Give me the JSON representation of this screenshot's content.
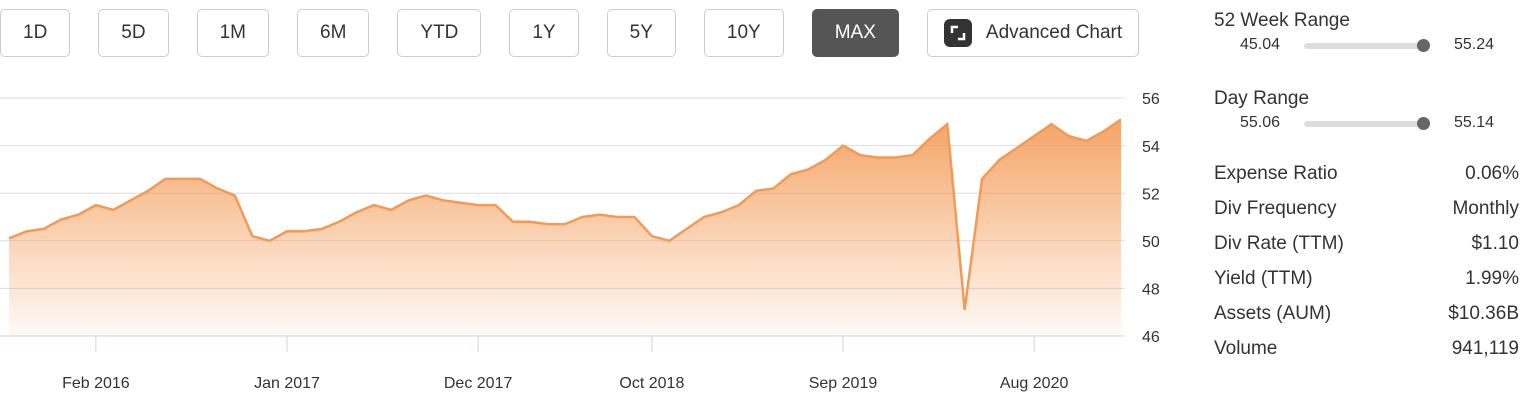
{
  "ranges": [
    "1D",
    "5D",
    "1M",
    "6M",
    "YTD",
    "1Y",
    "5Y",
    "10Y",
    "MAX"
  ],
  "advanced_chart": "Advanced Chart",
  "chart_data": {
    "type": "area",
    "x": [
      "Sep 2015",
      "Oct 2015",
      "Nov 2015",
      "Dec 2015",
      "Jan 2016",
      "Feb 2016",
      "Mar 2016",
      "Apr 2016",
      "May 2016",
      "Jun 2016",
      "Jul 2016",
      "Aug 2016",
      "Sep 2016",
      "Oct 2016",
      "Nov 2016",
      "Dec 2016",
      "Jan 2017",
      "Feb 2017",
      "Mar 2017",
      "Apr 2017",
      "May 2017",
      "Jun 2017",
      "Jul 2017",
      "Aug 2017",
      "Sep 2017",
      "Oct 2017",
      "Nov 2017",
      "Dec 2017",
      "Jan 2018",
      "Feb 2018",
      "Mar 2018",
      "Apr 2018",
      "May 2018",
      "Jun 2018",
      "Jul 2018",
      "Aug 2018",
      "Sep 2018",
      "Oct 2018",
      "Nov 2018",
      "Dec 2018",
      "Jan 2019",
      "Feb 2019",
      "Mar 2019",
      "Apr 2019",
      "May 2019",
      "Jun 2019",
      "Jul 2019",
      "Aug 2019",
      "Sep 2019",
      "Oct 2019",
      "Nov 2019",
      "Dec 2019",
      "Jan 2020",
      "Feb 2020",
      "Mar 2020",
      "Apr 2020",
      "May 2020",
      "Jun 2020",
      "Jul 2020",
      "Aug 2020",
      "Sep 2020",
      "Oct 2020",
      "Nov 2020",
      "Dec 2020",
      "Jan 2021"
    ],
    "values": [
      50.1,
      50.4,
      50.5,
      50.9,
      51.1,
      51.5,
      51.3,
      51.7,
      52.1,
      52.6,
      52.6,
      52.6,
      52.2,
      51.9,
      50.2,
      50.0,
      50.4,
      50.4,
      50.5,
      50.8,
      51.2,
      51.5,
      51.3,
      51.7,
      51.9,
      51.7,
      51.6,
      51.5,
      51.5,
      50.8,
      50.8,
      50.7,
      50.7,
      51.0,
      51.1,
      51.0,
      51.0,
      50.2,
      50.0,
      50.5,
      51.0,
      51.2,
      51.5,
      52.1,
      52.2,
      52.8,
      53.0,
      53.4,
      54.0,
      53.6,
      53.5,
      53.5,
      53.6,
      54.3,
      54.9,
      47.1,
      52.6,
      53.4,
      53.9,
      54.4,
      54.9,
      54.4,
      54.2,
      54.6,
      55.1
    ],
    "color": "#f39a55",
    "xticks": [
      "Feb 2016",
      "Jan 2017",
      "Dec 2017",
      "Oct 2018",
      "Sep 2019",
      "Aug 2020"
    ],
    "ylim": [
      46,
      56
    ],
    "yticks": [
      46,
      48,
      50,
      52,
      54,
      56
    ],
    "grid": true
  },
  "ranges_panel": [
    {
      "label": "52 Week Range",
      "low": 45.04,
      "high": 55.24
    },
    {
      "label": "Day Range",
      "low": 55.06,
      "high": 55.14
    }
  ],
  "stats": [
    [
      "Expense Ratio",
      "0.06%"
    ],
    [
      "Div Frequency",
      "Monthly"
    ],
    [
      "Div Rate (TTM)",
      "$1.10"
    ],
    [
      "Yield (TTM)",
      "1.99%"
    ],
    [
      "Assets (AUM)",
      "$10.36B"
    ],
    [
      "Volume",
      "941,119"
    ]
  ]
}
